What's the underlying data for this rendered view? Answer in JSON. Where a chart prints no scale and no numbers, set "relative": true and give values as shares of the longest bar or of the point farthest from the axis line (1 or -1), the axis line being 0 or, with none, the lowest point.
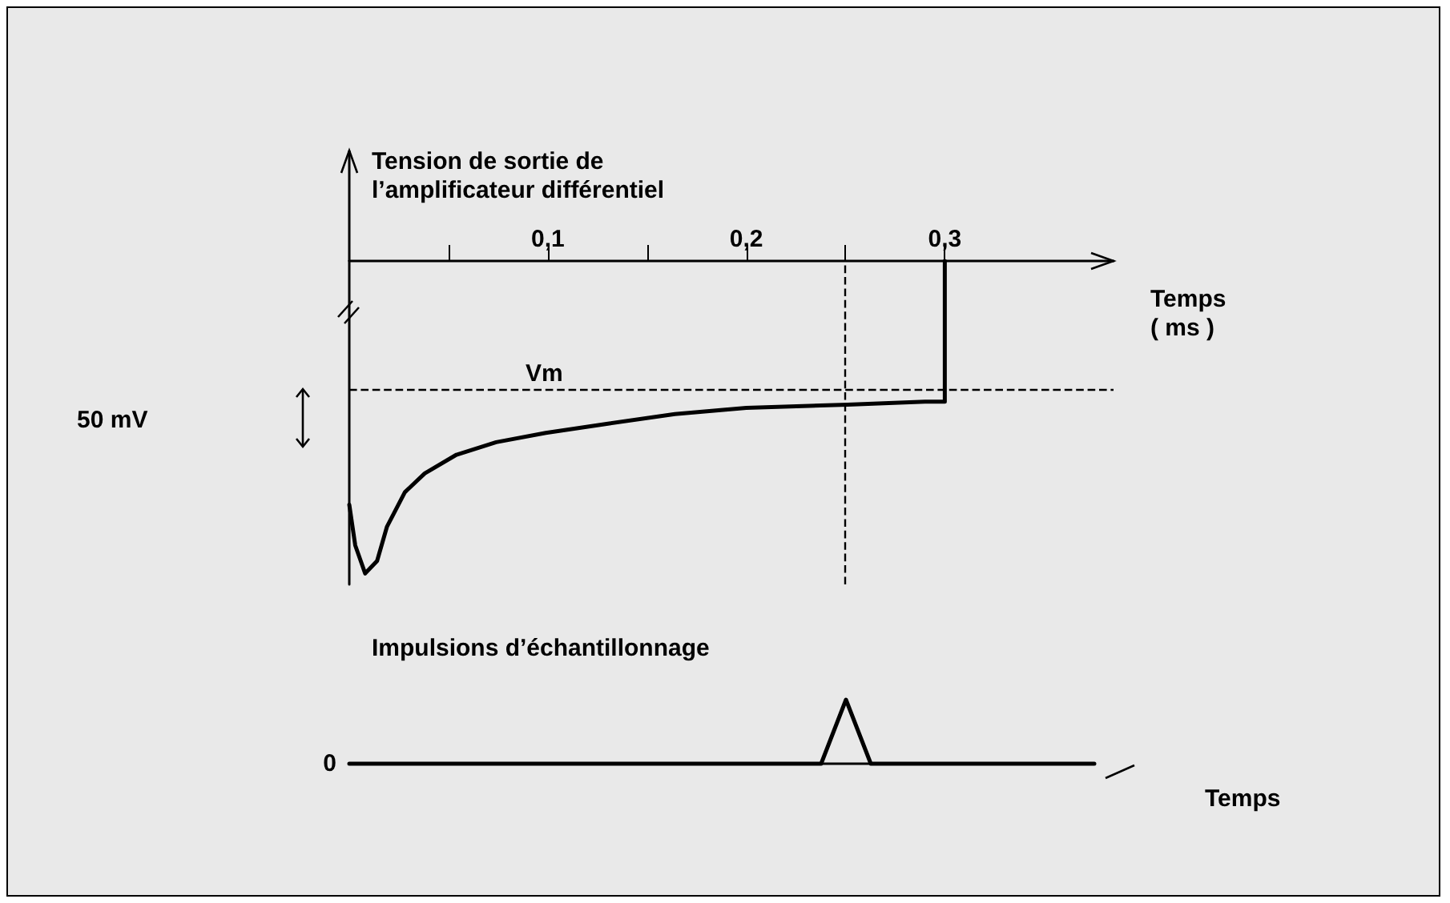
{
  "chart_data": [
    {
      "type": "line",
      "title": "Tension de sortie de l’amplificateur différentiel",
      "xlabel": "Temps ( ms )",
      "relative": true,
      "color": "#000000",
      "marker": "none",
      "line_style": "solid",
      "x": [
        0,
        0.003,
        0.008,
        0.014,
        0.019,
        0.028,
        0.038,
        0.054,
        0.074,
        0.099,
        0.131,
        0.164,
        0.2,
        0.251,
        0.29,
        0.3,
        0.3
      ],
      "values": [
        -0.78,
        -0.91,
        -1,
        -0.96,
        -0.85,
        -0.74,
        -0.68,
        -0.62,
        -0.58,
        -0.55,
        -0.52,
        -0.49,
        -0.47,
        -0.46,
        -0.45,
        -0.45,
        0
      ],
      "xlim": [
        0,
        0.385
      ],
      "xticks": [
        {
          "value": 0.05,
          "label": null
        },
        {
          "value": 0.1,
          "label": "0,1"
        },
        {
          "value": 0.15,
          "label": null
        },
        {
          "value": 0.2,
          "label": "0,2"
        },
        {
          "value": 0.25,
          "label": null
        },
        {
          "value": 0.3,
          "label": "0,3"
        }
      ],
      "ref_lines": [
        {
          "axis": "y",
          "value": -0.405,
          "label": "Vm",
          "line_style": "dashed"
        },
        {
          "axis": "x",
          "value": 0.25,
          "line_style": "dashed"
        }
      ],
      "annotations": [
        "50 mV"
      ]
    },
    {
      "type": "line",
      "title": "Impulsions d’échantillonnage",
      "xlabel": "Temps",
      "relative": true,
      "color": "#000000",
      "marker": "none",
      "line_style": "solid",
      "categories": [
        null,
        null,
        null,
        null,
        null,
        null,
        null,
        null,
        null,
        null,
        null,
        null,
        null,
        null,
        null,
        null,
        null,
        null,
        null,
        null,
        null,
        null,
        null,
        null,
        null,
        null,
        null,
        null,
        null,
        null,
        null
      ],
      "values": [
        0,
        0,
        0,
        0,
        0,
        0,
        0,
        0,
        0,
        0,
        0,
        0,
        0,
        0,
        0,
        0,
        0,
        0,
        0,
        0,
        1,
        0,
        0,
        0,
        0,
        0,
        0,
        0,
        0,
        0,
        0
      ],
      "annotations": [
        "0"
      ]
    }
  ]
}
